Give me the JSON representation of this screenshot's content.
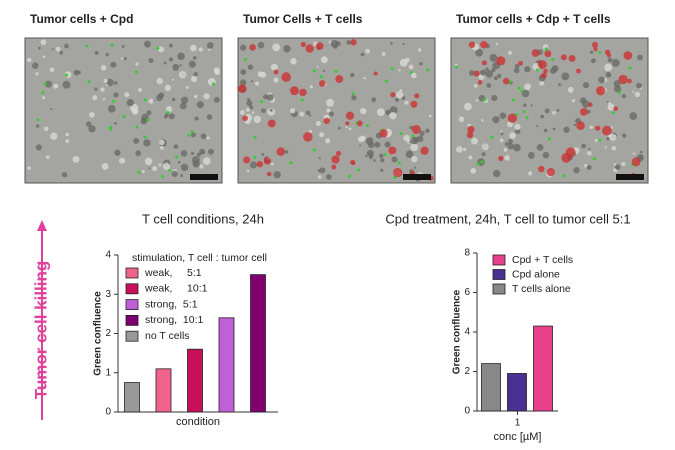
{
  "panels": [
    {
      "label": "Tumor cells + Cpd"
    },
    {
      "label": "Tumor Cells + T cells"
    },
    {
      "label": "Tumor cells + Cdp  + T cells"
    }
  ],
  "side_label": "Tumor cell killing",
  "chart_data": [
    {
      "type": "bar",
      "title": "T cell conditions, 24h",
      "y_label": "Green confluence",
      "x_label": "condition",
      "legend_title": "stimulation, T cell : tumor cell",
      "ylim": [
        0,
        4
      ],
      "yticks": [
        0,
        1,
        2,
        3,
        4
      ],
      "series": [
        {
          "name": "weak,     5:1",
          "color": "#f0648c",
          "values": [
            1.1
          ]
        },
        {
          "name": "weak,     10:1",
          "color": "#c8105a",
          "values": [
            1.6
          ]
        },
        {
          "name": "strong,  5:1",
          "color": "#c060d8",
          "values": [
            2.4
          ]
        },
        {
          "name": "strong,  10:1",
          "color": "#800070",
          "values": [
            3.5
          ]
        },
        {
          "name": "no T cells",
          "color": "#999999",
          "values": [
            0.75
          ]
        }
      ]
    },
    {
      "type": "bar",
      "title": "Cpd treatment, 24h, T cell to tumor cell 5:1",
      "y_label": "Green confluence",
      "x_label": "conc [µM]",
      "categories": [
        "1"
      ],
      "ylim": [
        0,
        8
      ],
      "yticks": [
        0,
        2,
        4,
        6,
        8
      ],
      "series": [
        {
          "name": "Cpd + T cells",
          "color": "#e8408a",
          "values": [
            4.3
          ]
        },
        {
          "name": "Cpd alone",
          "color": "#4a3090",
          "values": [
            1.9
          ]
        },
        {
          "name": "T cells alone",
          "color": "#888888",
          "values": [
            2.4
          ]
        }
      ]
    }
  ]
}
